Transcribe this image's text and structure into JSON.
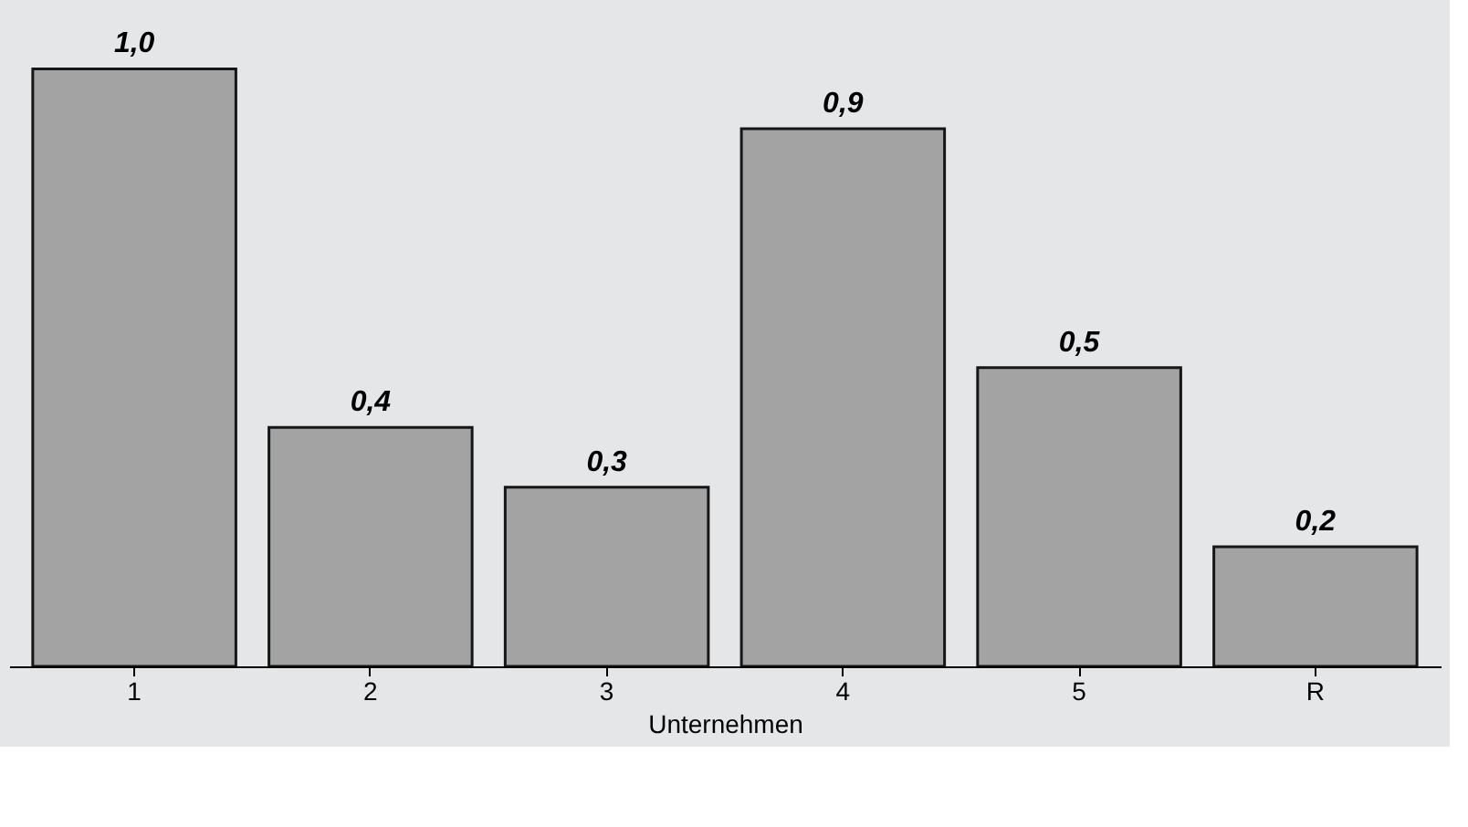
{
  "chart_data": {
    "type": "bar",
    "xlabel": "Unternehmen",
    "categories": [
      "1",
      "2",
      "3",
      "4",
      "5",
      "R"
    ],
    "values": [
      1.0,
      0.4,
      0.3,
      0.9,
      0.5,
      0.2
    ],
    "value_labels": [
      "1,0",
      "0,4",
      "0,3",
      "0,9",
      "0,5",
      "0,2"
    ],
    "color": "#9c9c9c",
    "tick_labels": "x"
  }
}
